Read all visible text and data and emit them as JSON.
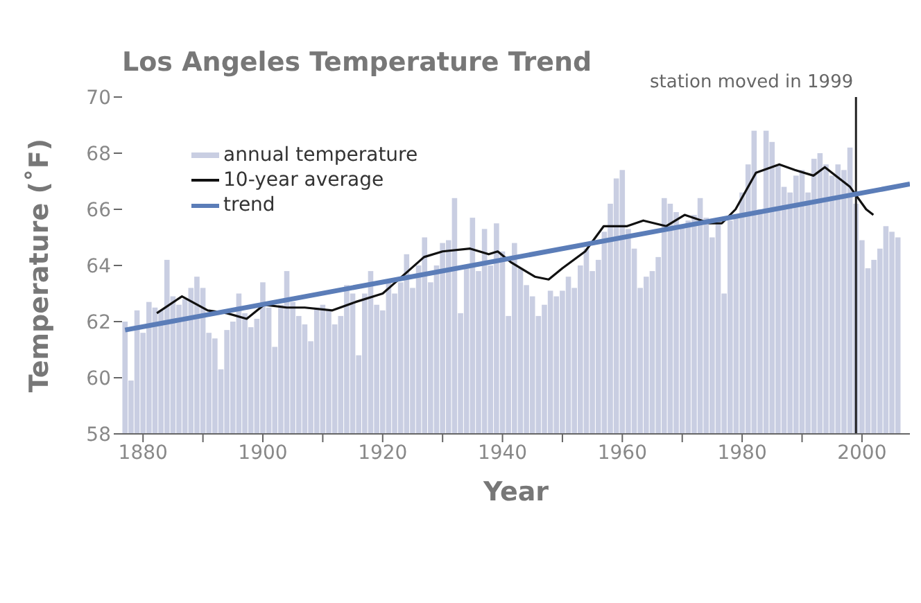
{
  "chart_data": {
    "type": "bar",
    "title": "Los Angeles Temperature Trend",
    "xlabel": "Year",
    "ylabel": "Temperature (˚F)",
    "x": [
      1877,
      1878,
      1879,
      1880,
      1881,
      1882,
      1883,
      1884,
      1885,
      1886,
      1887,
      1888,
      1889,
      1890,
      1891,
      1892,
      1893,
      1894,
      1895,
      1896,
      1897,
      1898,
      1899,
      1900,
      1901,
      1902,
      1903,
      1904,
      1905,
      1906,
      1907,
      1908,
      1909,
      1910,
      1911,
      1912,
      1913,
      1914,
      1915,
      1916,
      1917,
      1918,
      1919,
      1920,
      1921,
      1922,
      1923,
      1924,
      1925,
      1926,
      1927,
      1928,
      1929,
      1930,
      1931,
      1932,
      1933,
      1934,
      1935,
      1936,
      1937,
      1938,
      1939,
      1940,
      1941,
      1942,
      1943,
      1944,
      1945,
      1946,
      1947,
      1948,
      1949,
      1950,
      1951,
      1952,
      1953,
      1954,
      1955,
      1956,
      1957,
      1958,
      1959,
      1960,
      1961,
      1962,
      1963,
      1964,
      1965,
      1966,
      1967,
      1968,
      1969,
      1970,
      1971,
      1972,
      1973,
      1974,
      1975,
      1976,
      1977,
      1978,
      1979,
      1980,
      1981,
      1982,
      1983,
      1984,
      1985,
      1986,
      1987,
      1988,
      1989,
      1990,
      1991,
      1992,
      1993,
      1994,
      1995,
      1996,
      1997,
      1998,
      1999,
      2000,
      2001,
      2002,
      2003,
      2004,
      2005,
      2006
    ],
    "series": [
      {
        "name": "annual temperature",
        "color": "#c9cee2",
        "values": [
          62.0,
          59.9,
          62.4,
          61.6,
          62.7,
          62.5,
          62.4,
          64.2,
          62.9,
          62.6,
          62.8,
          63.2,
          63.6,
          63.2,
          61.6,
          61.4,
          60.3,
          61.7,
          62.0,
          63.0,
          62.3,
          61.8,
          62.1,
          63.4,
          62.5,
          61.1,
          62.6,
          63.8,
          62.7,
          62.2,
          61.9,
          61.3,
          62.5,
          62.6,
          62.4,
          61.9,
          62.2,
          63.3,
          63.0,
          60.8,
          63.0,
          63.8,
          62.6,
          62.4,
          63.5,
          63.0,
          63.4,
          64.4,
          63.2,
          64.0,
          65.0,
          63.4,
          64.0,
          64.8,
          64.9,
          66.4,
          62.3,
          64.0,
          65.7,
          63.8,
          65.3,
          64.0,
          65.5,
          64.5,
          62.2,
          64.8,
          63.9,
          63.3,
          62.9,
          62.2,
          62.6,
          63.1,
          62.9,
          63.1,
          63.6,
          63.2,
          64.0,
          64.6,
          63.8,
          64.2,
          65.2,
          66.2,
          67.1,
          67.4,
          65.3,
          64.6,
          63.2,
          63.6,
          63.8,
          64.3,
          66.4,
          66.2,
          65.9,
          65.4,
          65.6,
          65.8,
          66.4,
          65.7,
          65.0,
          65.6,
          63.0,
          65.6,
          65.8,
          66.6,
          67.6,
          68.8,
          66.0,
          68.8,
          68.4,
          67.6,
          66.8,
          66.6,
          67.2,
          67.4,
          66.6,
          67.8,
          68.0,
          67.6,
          67.2,
          67.6,
          67.4,
          68.2,
          66.2,
          64.9,
          63.9,
          64.2,
          64.6,
          65.4,
          65.2,
          65.0
        ]
      },
      {
        "name": "10-year average",
        "type": "line",
        "color": "#111111",
        "x": [
          1882.3,
          1886.5,
          1890.8,
          1894,
          1897.3,
          1900.2,
          1904,
          1907,
          1911.6,
          1915.5,
          1920,
          1921.6,
          1926.9,
          1930,
          1934.6,
          1937.7,
          1939.2,
          1941.5,
          1945.4,
          1947.7,
          1950,
          1953.8,
          1956.9,
          1960.8,
          1963.5,
          1967.3,
          1970.4,
          1974.6,
          1976.6,
          1978.9,
          1982.3,
          1986.2,
          1988.8,
          1991.9,
          1993.8,
          1998,
          2000.7,
          2001.9
        ],
        "values": [
          62.3,
          62.9,
          62.4,
          62.3,
          62.1,
          62.6,
          62.5,
          62.5,
          62.4,
          62.7,
          63.0,
          63.3,
          64.3,
          64.5,
          64.6,
          64.4,
          64.5,
          64.1,
          63.6,
          63.5,
          63.9,
          64.5,
          65.4,
          65.4,
          65.6,
          65.4,
          65.8,
          65.5,
          65.5,
          66.0,
          67.3,
          67.6,
          67.4,
          67.2,
          67.5,
          66.8,
          66.0,
          65.8
        ]
      },
      {
        "name": "trend",
        "type": "line",
        "color": "#5b7db8",
        "x": [
          1877,
          2008
        ],
        "values": [
          61.7,
          66.9
        ]
      }
    ],
    "xlim": [
      1876.5,
      2008
    ],
    "ylim": [
      58,
      70
    ],
    "xticks": [
      1880,
      {
        "value": 1890,
        "label": null
      },
      1900,
      {
        "value": 1910,
        "label": null
      },
      1920,
      {
        "value": 1930,
        "label": null
      },
      1940,
      {
        "value": 1950,
        "label": null
      },
      1960,
      {
        "value": 1970,
        "label": null
      },
      1980,
      {
        "value": 1990,
        "label": null
      },
      2000
    ],
    "yticks": [
      58,
      60,
      62,
      64,
      66,
      68,
      70
    ],
    "ref_lines": [
      {
        "axis": "x",
        "value": 1999,
        "label": "station moved in 1999",
        "color": "#222222"
      }
    ],
    "legend": "top left",
    "grid": false
  }
}
